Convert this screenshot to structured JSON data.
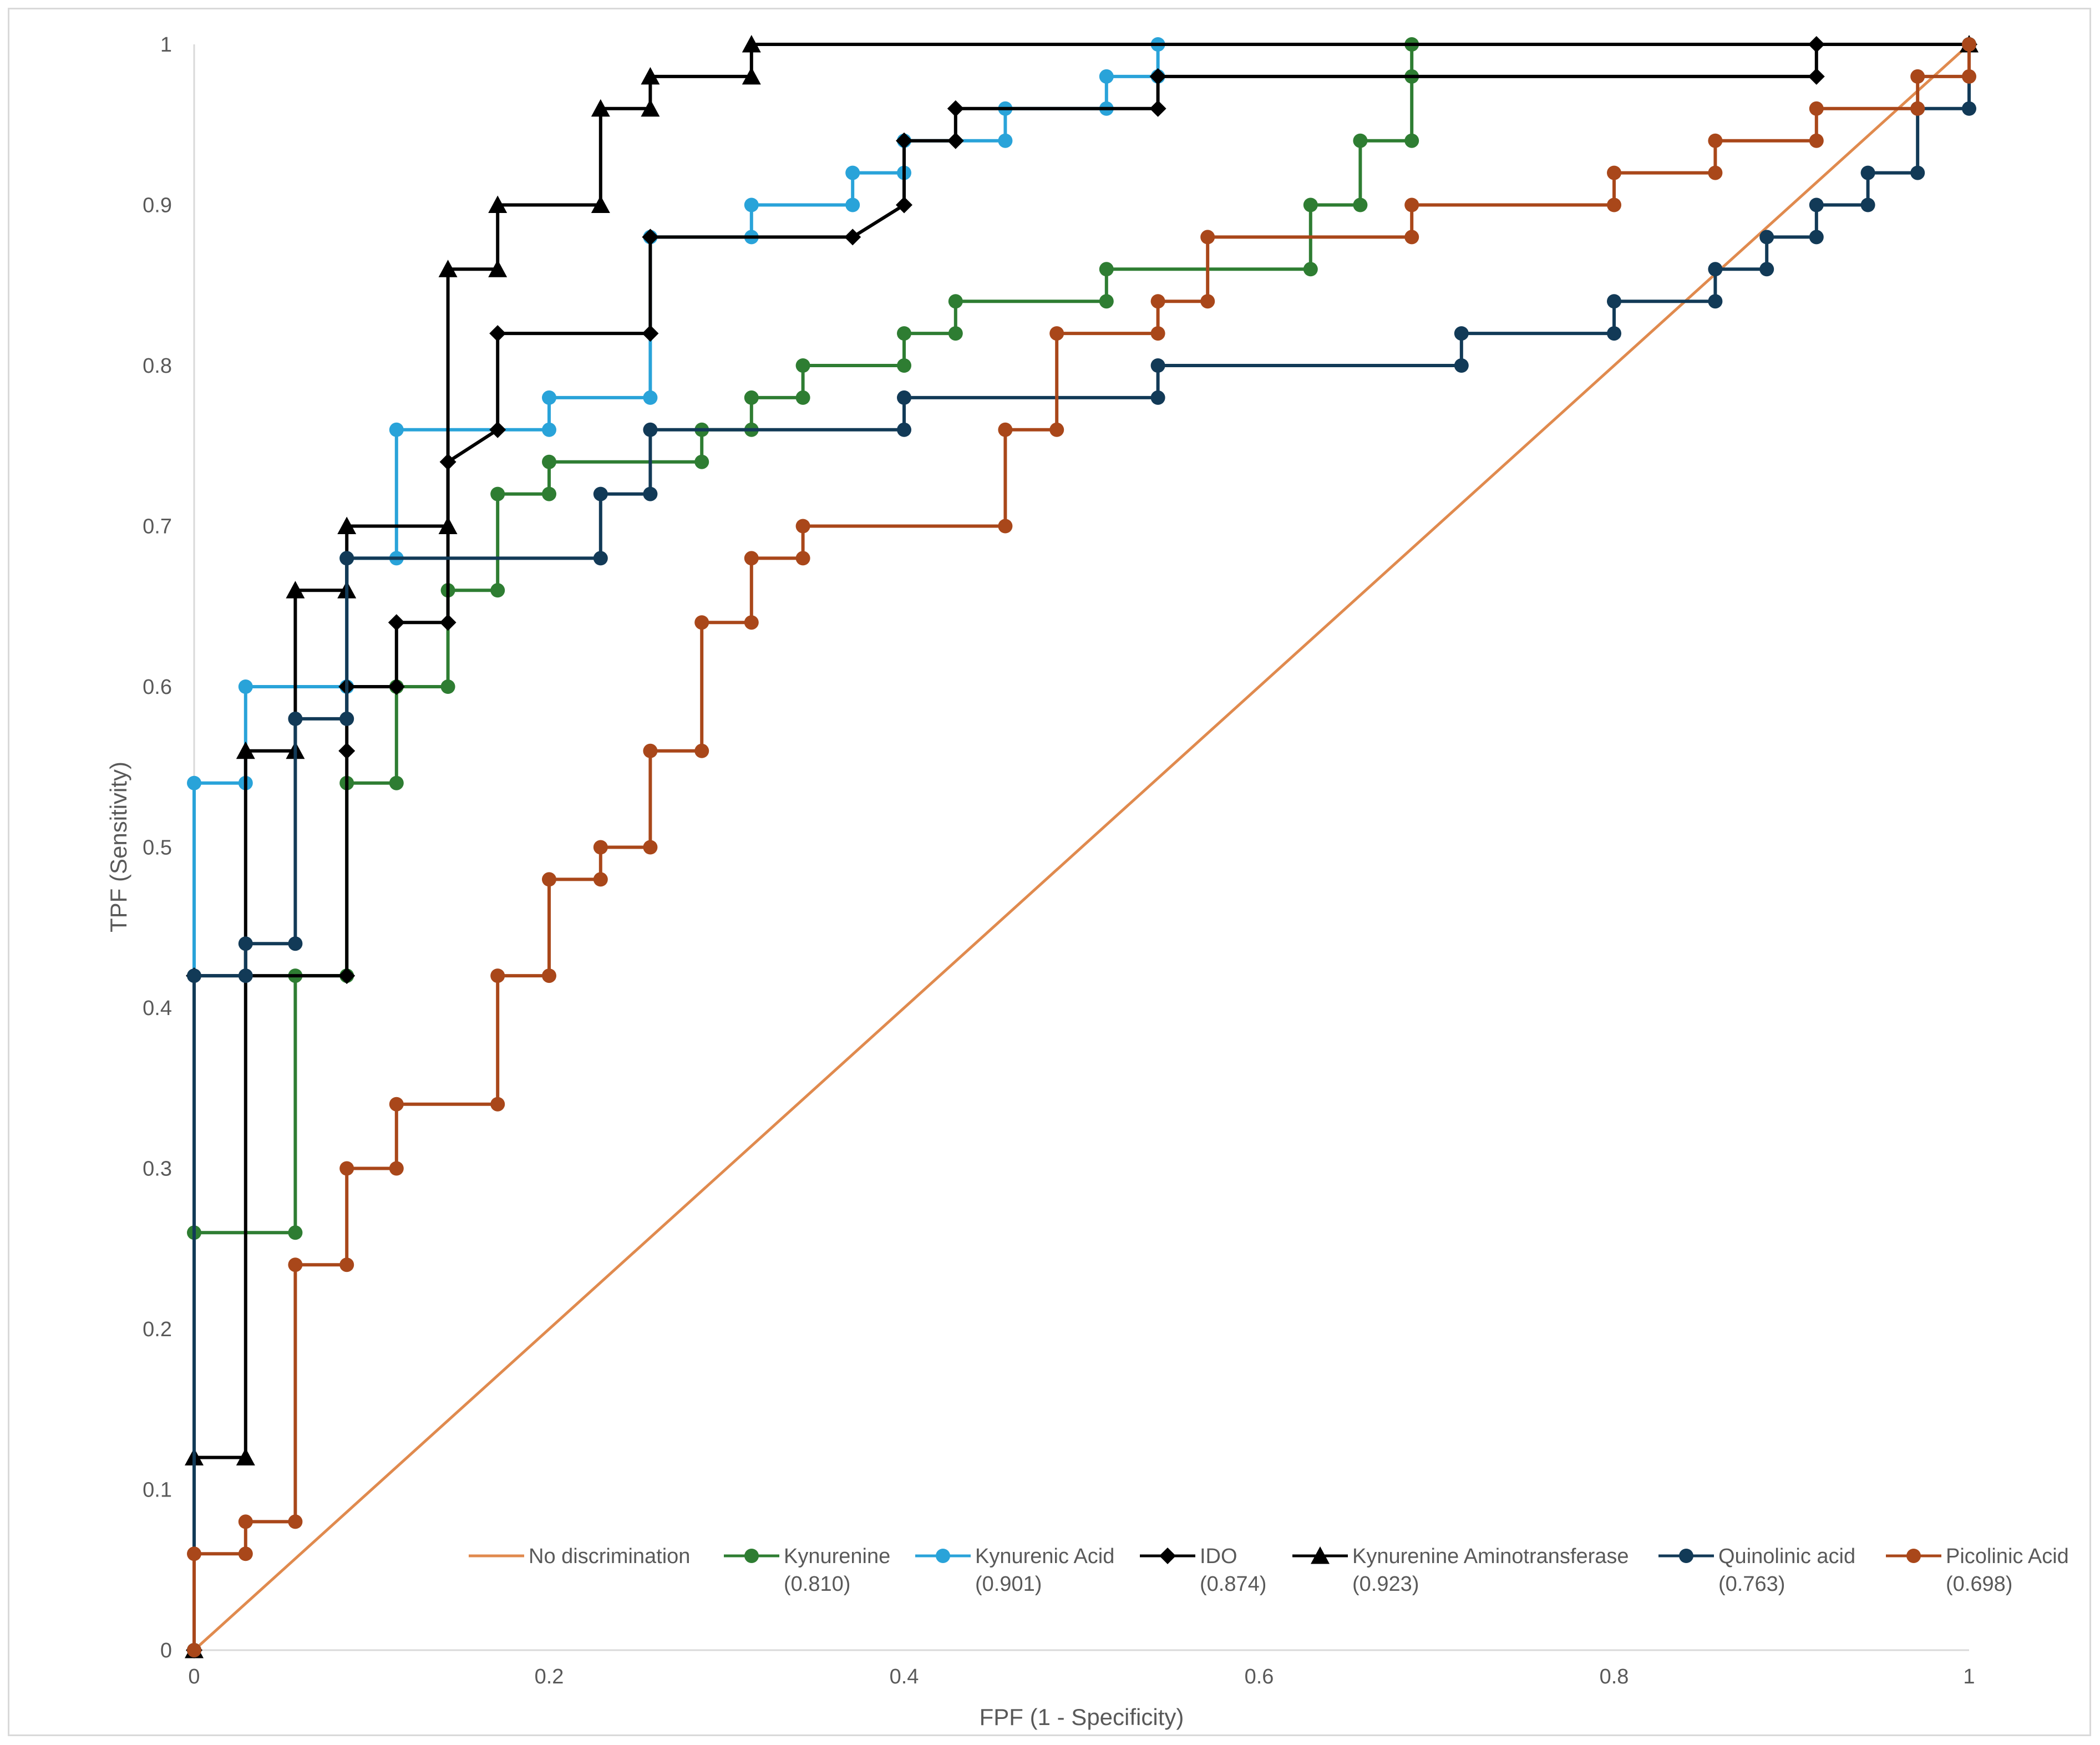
{
  "chart_data": {
    "type": "line",
    "title": "",
    "xlabel": "FPF (1 - Specificity)",
    "ylabel": "TPF (Sensitivity)",
    "xlim": [
      0,
      1
    ],
    "ylim": [
      0,
      1
    ],
    "x_ticks": [
      "0",
      "0.2",
      "0.4",
      "0.6",
      "0.8",
      "1"
    ],
    "y_ticks": [
      "0",
      "0.1",
      "0.2",
      "0.3",
      "0.4",
      "0.5",
      "0.6",
      "0.7",
      "0.8",
      "0.9",
      "1"
    ],
    "grid": false,
    "legend_position": "bottom-right",
    "series": [
      {
        "name": "No discrimination",
        "auc": "",
        "color": "#e08a4e",
        "marker": "none",
        "points": [
          [
            0,
            0
          ],
          [
            1,
            1
          ]
        ]
      },
      {
        "name": "Kynurenine",
        "auc": "(0.810)",
        "color": "#2e7d32",
        "marker": "circle",
        "points": [
          [
            0,
            0
          ],
          [
            0,
            0.26
          ],
          [
            0.057,
            0.26
          ],
          [
            0.057,
            0.42
          ],
          [
            0.086,
            0.42
          ],
          [
            0.086,
            0.54
          ],
          [
            0.114,
            0.54
          ],
          [
            0.114,
            0.6
          ],
          [
            0.143,
            0.6
          ],
          [
            0.143,
            0.66
          ],
          [
            0.171,
            0.66
          ],
          [
            0.171,
            0.72
          ],
          [
            0.2,
            0.72
          ],
          [
            0.2,
            0.74
          ],
          [
            0.286,
            0.74
          ],
          [
            0.286,
            0.76
          ],
          [
            0.314,
            0.76
          ],
          [
            0.314,
            0.78
          ],
          [
            0.343,
            0.78
          ],
          [
            0.343,
            0.8
          ],
          [
            0.4,
            0.8
          ],
          [
            0.4,
            0.82
          ],
          [
            0.429,
            0.82
          ],
          [
            0.429,
            0.84
          ],
          [
            0.514,
            0.84
          ],
          [
            0.514,
            0.86
          ],
          [
            0.629,
            0.86
          ],
          [
            0.629,
            0.9
          ],
          [
            0.657,
            0.9
          ],
          [
            0.657,
            0.94
          ],
          [
            0.686,
            0.94
          ],
          [
            0.686,
            0.98
          ],
          [
            0.686,
            1
          ],
          [
            1,
            1
          ]
        ]
      },
      {
        "name": "Kynurenic Acid",
        "auc": "(0.901)",
        "color": "#29a3d9",
        "marker": "circle",
        "points": [
          [
            0,
            0
          ],
          [
            0,
            0.54
          ],
          [
            0.029,
            0.54
          ],
          [
            0.029,
            0.6
          ],
          [
            0.086,
            0.6
          ],
          [
            0.086,
            0.68
          ],
          [
            0.114,
            0.68
          ],
          [
            0.114,
            0.76
          ],
          [
            0.2,
            0.76
          ],
          [
            0.2,
            0.78
          ],
          [
            0.257,
            0.78
          ],
          [
            0.257,
            0.88
          ],
          [
            0.314,
            0.88
          ],
          [
            0.314,
            0.9
          ],
          [
            0.371,
            0.9
          ],
          [
            0.371,
            0.92
          ],
          [
            0.4,
            0.92
          ],
          [
            0.4,
            0.94
          ],
          [
            0.457,
            0.94
          ],
          [
            0.457,
            0.96
          ],
          [
            0.514,
            0.96
          ],
          [
            0.514,
            0.98
          ],
          [
            0.543,
            0.98
          ],
          [
            0.543,
            1
          ],
          [
            1,
            1
          ]
        ]
      },
      {
        "name": "IDO",
        "auc": "(0.874)",
        "color": "#000000",
        "marker": "diamond",
        "points": [
          [
            0,
            0
          ],
          [
            0,
            0.42
          ],
          [
            0.086,
            0.42
          ],
          [
            0.086,
            0.56
          ],
          [
            0.086,
            0.6
          ],
          [
            0.114,
            0.6
          ],
          [
            0.114,
            0.64
          ],
          [
            0.143,
            0.64
          ],
          [
            0.143,
            0.74
          ],
          [
            0.171,
            0.76
          ],
          [
            0.171,
            0.82
          ],
          [
            0.257,
            0.82
          ],
          [
            0.257,
            0.88
          ],
          [
            0.371,
            0.88
          ],
          [
            0.4,
            0.9
          ],
          [
            0.4,
            0.94
          ],
          [
            0.429,
            0.94
          ],
          [
            0.429,
            0.96
          ],
          [
            0.543,
            0.96
          ],
          [
            0.543,
            0.98
          ],
          [
            0.914,
            0.98
          ],
          [
            0.914,
            1
          ],
          [
            1,
            1
          ]
        ]
      },
      {
        "name": "Kynurenine Aminotransferase",
        "auc": "(0.923)",
        "color": "#000000",
        "marker": "triangle",
        "points": [
          [
            0,
            0
          ],
          [
            0,
            0.12
          ],
          [
            0.029,
            0.12
          ],
          [
            0.029,
            0.56
          ],
          [
            0.057,
            0.56
          ],
          [
            0.057,
            0.66
          ],
          [
            0.086,
            0.66
          ],
          [
            0.086,
            0.7
          ],
          [
            0.143,
            0.7
          ],
          [
            0.143,
            0.86
          ],
          [
            0.171,
            0.86
          ],
          [
            0.171,
            0.9
          ],
          [
            0.229,
            0.9
          ],
          [
            0.229,
            0.96
          ],
          [
            0.257,
            0.96
          ],
          [
            0.257,
            0.98
          ],
          [
            0.314,
            0.98
          ],
          [
            0.314,
            1
          ],
          [
            1,
            1
          ]
        ]
      },
      {
        "name": "Quinolinic acid",
        "auc": "(0.763)",
        "color": "#123a57",
        "marker": "circle",
        "points": [
          [
            0,
            0
          ],
          [
            0,
            0.42
          ],
          [
            0.029,
            0.42
          ],
          [
            0.029,
            0.44
          ],
          [
            0.057,
            0.44
          ],
          [
            0.057,
            0.58
          ],
          [
            0.086,
            0.58
          ],
          [
            0.086,
            0.68
          ],
          [
            0.229,
            0.68
          ],
          [
            0.229,
            0.72
          ],
          [
            0.257,
            0.72
          ],
          [
            0.257,
            0.76
          ],
          [
            0.4,
            0.76
          ],
          [
            0.4,
            0.78
          ],
          [
            0.543,
            0.78
          ],
          [
            0.543,
            0.8
          ],
          [
            0.714,
            0.8
          ],
          [
            0.714,
            0.82
          ],
          [
            0.8,
            0.82
          ],
          [
            0.8,
            0.84
          ],
          [
            0.857,
            0.84
          ],
          [
            0.857,
            0.86
          ],
          [
            0.886,
            0.86
          ],
          [
            0.886,
            0.88
          ],
          [
            0.914,
            0.88
          ],
          [
            0.914,
            0.9
          ],
          [
            0.943,
            0.9
          ],
          [
            0.943,
            0.92
          ],
          [
            0.971,
            0.92
          ],
          [
            0.971,
            0.96
          ],
          [
            1,
            0.96
          ],
          [
            1,
            1
          ]
        ]
      },
      {
        "name": "Picolinic Acid",
        "auc": "(0.698)",
        "color": "#a9471a",
        "marker": "circle",
        "points": [
          [
            0,
            0
          ],
          [
            0,
            0.06
          ],
          [
            0.029,
            0.06
          ],
          [
            0.029,
            0.08
          ],
          [
            0.057,
            0.08
          ],
          [
            0.057,
            0.24
          ],
          [
            0.086,
            0.24
          ],
          [
            0.086,
            0.3
          ],
          [
            0.114,
            0.3
          ],
          [
            0.114,
            0.34
          ],
          [
            0.171,
            0.34
          ],
          [
            0.171,
            0.42
          ],
          [
            0.2,
            0.42
          ],
          [
            0.2,
            0.48
          ],
          [
            0.229,
            0.48
          ],
          [
            0.229,
            0.5
          ],
          [
            0.257,
            0.5
          ],
          [
            0.257,
            0.56
          ],
          [
            0.286,
            0.56
          ],
          [
            0.286,
            0.64
          ],
          [
            0.314,
            0.64
          ],
          [
            0.314,
            0.68
          ],
          [
            0.343,
            0.68
          ],
          [
            0.343,
            0.7
          ],
          [
            0.457,
            0.7
          ],
          [
            0.457,
            0.76
          ],
          [
            0.486,
            0.76
          ],
          [
            0.486,
            0.82
          ],
          [
            0.543,
            0.82
          ],
          [
            0.543,
            0.84
          ],
          [
            0.571,
            0.84
          ],
          [
            0.571,
            0.88
          ],
          [
            0.686,
            0.88
          ],
          [
            0.686,
            0.9
          ],
          [
            0.8,
            0.9
          ],
          [
            0.8,
            0.92
          ],
          [
            0.857,
            0.92
          ],
          [
            0.857,
            0.94
          ],
          [
            0.914,
            0.94
          ],
          [
            0.914,
            0.96
          ],
          [
            0.971,
            0.96
          ],
          [
            0.971,
            0.98
          ],
          [
            1,
            0.98
          ],
          [
            1,
            1
          ]
        ]
      }
    ]
  }
}
